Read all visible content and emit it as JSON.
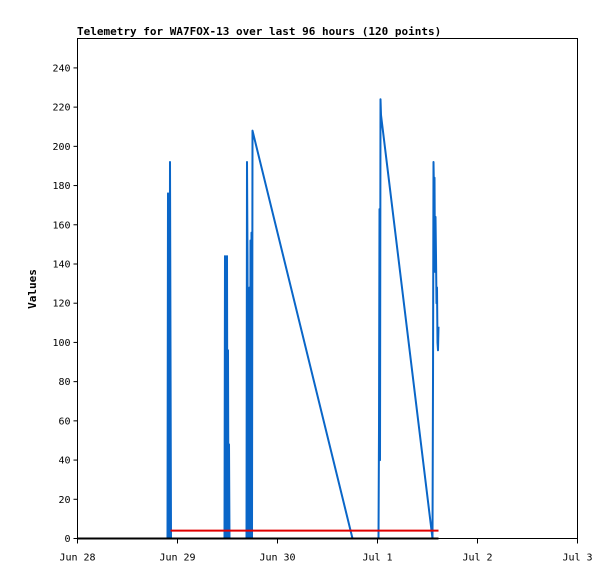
{
  "chart_data": {
    "type": "line",
    "title": "Telemetry for WA7FOX-13 over last 96 hours (120 points)",
    "xlabel": "",
    "ylabel": "Values",
    "x_ticks": [
      "Jun 28",
      "Jun 29",
      "Jun 30",
      "Jul 1",
      "Jul 2",
      "Jul 3"
    ],
    "xlim_days": [
      0,
      5
    ],
    "y_ticks": [
      0,
      20,
      40,
      60,
      80,
      100,
      120,
      140,
      160,
      180,
      200,
      220,
      240
    ],
    "ylim": [
      0,
      255
    ],
    "grid": false,
    "series": [
      {
        "color": "#0a66c8",
        "points": [
          [
            0.9,
            0
          ],
          [
            0.905,
            176
          ],
          [
            0.91,
            0
          ],
          [
            0.92,
            0
          ],
          [
            0.925,
            192
          ],
          [
            0.93,
            96
          ],
          [
            0.935,
            0
          ],
          [
            1.47,
            0
          ],
          [
            1.475,
            144
          ],
          [
            1.48,
            0
          ],
          [
            1.485,
            112
          ],
          [
            1.49,
            0
          ],
          [
            1.495,
            144
          ],
          [
            1.5,
            0
          ],
          [
            1.505,
            96
          ],
          [
            1.51,
            0
          ],
          [
            1.515,
            48
          ],
          [
            1.52,
            0
          ],
          [
            1.69,
            0
          ],
          [
            1.695,
            192
          ],
          [
            1.7,
            144
          ],
          [
            1.705,
            0
          ],
          [
            1.71,
            96
          ],
          [
            1.715,
            32
          ],
          [
            1.72,
            128
          ],
          [
            1.725,
            0
          ],
          [
            1.73,
            152
          ],
          [
            1.735,
            56
          ],
          [
            1.74,
            156
          ],
          [
            1.745,
            0
          ],
          [
            1.75,
            208
          ],
          [
            2.75,
            0
          ],
          [
            2.76,
            0
          ],
          [
            3.01,
            0
          ],
          [
            3.015,
            56
          ],
          [
            3.02,
            168
          ],
          [
            3.025,
            40
          ],
          [
            3.03,
            224
          ],
          [
            3.035,
            216
          ],
          [
            3.55,
            0
          ],
          [
            3.555,
            80
          ],
          [
            3.56,
            192
          ],
          [
            3.565,
            176
          ],
          [
            3.57,
            184
          ],
          [
            3.575,
            136
          ],
          [
            3.58,
            164
          ],
          [
            3.585,
            144
          ],
          [
            3.59,
            120
          ],
          [
            3.595,
            128
          ],
          [
            3.6,
            100
          ],
          [
            3.605,
            96
          ],
          [
            3.61,
            108
          ]
        ]
      },
      {
        "color": "#e00000",
        "points": [
          [
            0.93,
            4
          ],
          [
            3.61,
            4
          ]
        ]
      },
      {
        "color": "#000000",
        "points": [
          [
            0,
            0
          ],
          [
            3.61,
            0
          ]
        ]
      }
    ]
  }
}
